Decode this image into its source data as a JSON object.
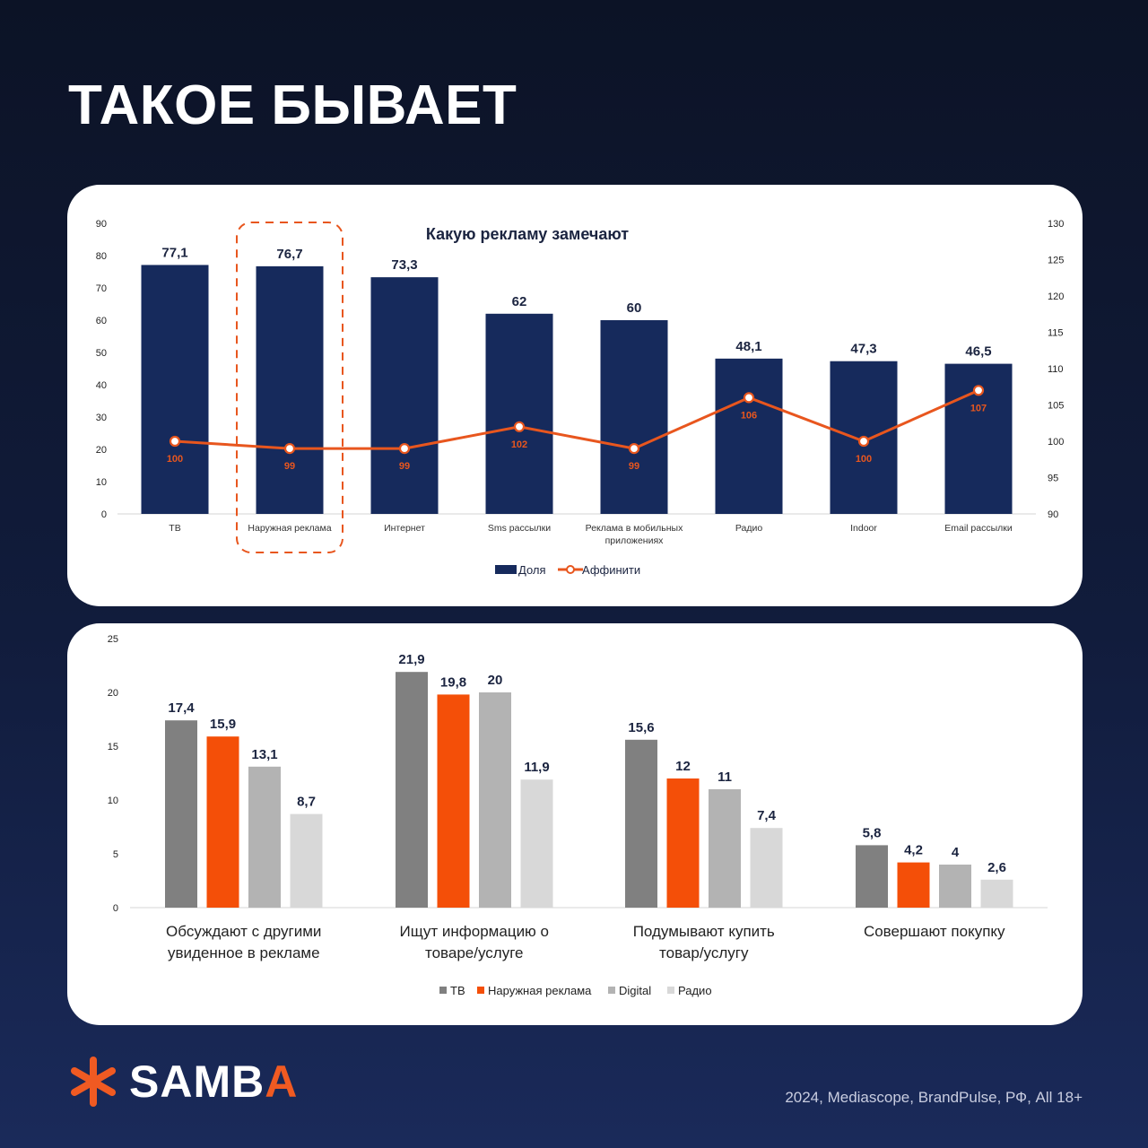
{
  "page": {
    "headline": "ТАКОЕ БЫВАЕТ",
    "source": "2024, Mediascope, BrandPulse, РФ, All 18+"
  },
  "brand": {
    "name_main": "SAMB",
    "name_accent": "A",
    "logo_icon": "asterisk-icon",
    "accent_color": "#f05a22",
    "navy_color": "#162a5c"
  },
  "chart_data": [
    {
      "type": "bar",
      "title": "Какую рекламу замечают",
      "categories": [
        [
          "ТВ"
        ],
        [
          "Наружная реклама"
        ],
        [
          "Интернет"
        ],
        [
          "Sms рассылки"
        ],
        [
          "Реклама в мобильных",
          "приложениях"
        ],
        [
          "Радио"
        ],
        [
          "Indoor"
        ],
        [
          "Email рассылки"
        ]
      ],
      "series": [
        {
          "name": "Доля",
          "type": "bar",
          "axis": "left",
          "color": "#162a5c",
          "values": [
            77.1,
            76.7,
            73.3,
            62,
            60,
            48.1,
            47.3,
            46.5
          ],
          "labels": [
            "77,1",
            "76,7",
            "73,3",
            "62",
            "60",
            "48,1",
            "47,3",
            "46,5"
          ]
        },
        {
          "name": "Аффинити",
          "type": "line",
          "axis": "right",
          "color": "#e8561e",
          "values": [
            100,
            99,
            99,
            102,
            99,
            106,
            100,
            107
          ],
          "labels": [
            "100",
            "99",
            "99",
            "102",
            "99",
            "106",
            "100",
            "107"
          ]
        }
      ],
      "y_left": {
        "min": 0,
        "max": 90,
        "ticks": [
          "0",
          "10",
          "20",
          "30",
          "40",
          "50",
          "60",
          "70",
          "80",
          "90"
        ]
      },
      "y_right": {
        "min": 90,
        "max": 130,
        "ticks": [
          "90",
          "95",
          "100",
          "105",
          "110",
          "115",
          "120",
          "125",
          "130"
        ]
      },
      "highlight_category": 1,
      "legend": "bottom",
      "grid": false
    },
    {
      "type": "bar",
      "categories": [
        [
          "Обсуждают с другими",
          "увиденное в рекламе"
        ],
        [
          "Ищут информацию о",
          "товаре/услуге"
        ],
        [
          "Подумывают купить",
          "товар/услугу"
        ],
        [
          "Совершают покупку"
        ]
      ],
      "series": [
        {
          "name": "ТВ",
          "color": "#808080",
          "values": [
            17.4,
            21.9,
            15.6,
            5.8
          ],
          "labels": [
            "17,4",
            "21,9",
            "15,6",
            "5,8"
          ]
        },
        {
          "name": "Наружная реклама",
          "color": "#f44f08",
          "values": [
            15.9,
            19.8,
            12,
            4.2
          ],
          "labels": [
            "15,9",
            "19,8",
            "12",
            "4,2"
          ]
        },
        {
          "name": "Digital",
          "color": "#b3b3b3",
          "values": [
            13.1,
            20,
            11,
            4
          ],
          "labels": [
            "13,1",
            "20",
            "11",
            "4"
          ]
        },
        {
          "name": "Радио",
          "color": "#d8d8d8",
          "values": [
            8.7,
            11.9,
            7.4,
            2.6
          ],
          "labels": [
            "8,7",
            "11,9",
            "7,4",
            "2,6"
          ]
        }
      ],
      "y": {
        "min": 0,
        "max": 25,
        "ticks": [
          "0",
          "5",
          "10",
          "15",
          "20",
          "25"
        ]
      },
      "legend": "bottom",
      "grid": false
    }
  ]
}
